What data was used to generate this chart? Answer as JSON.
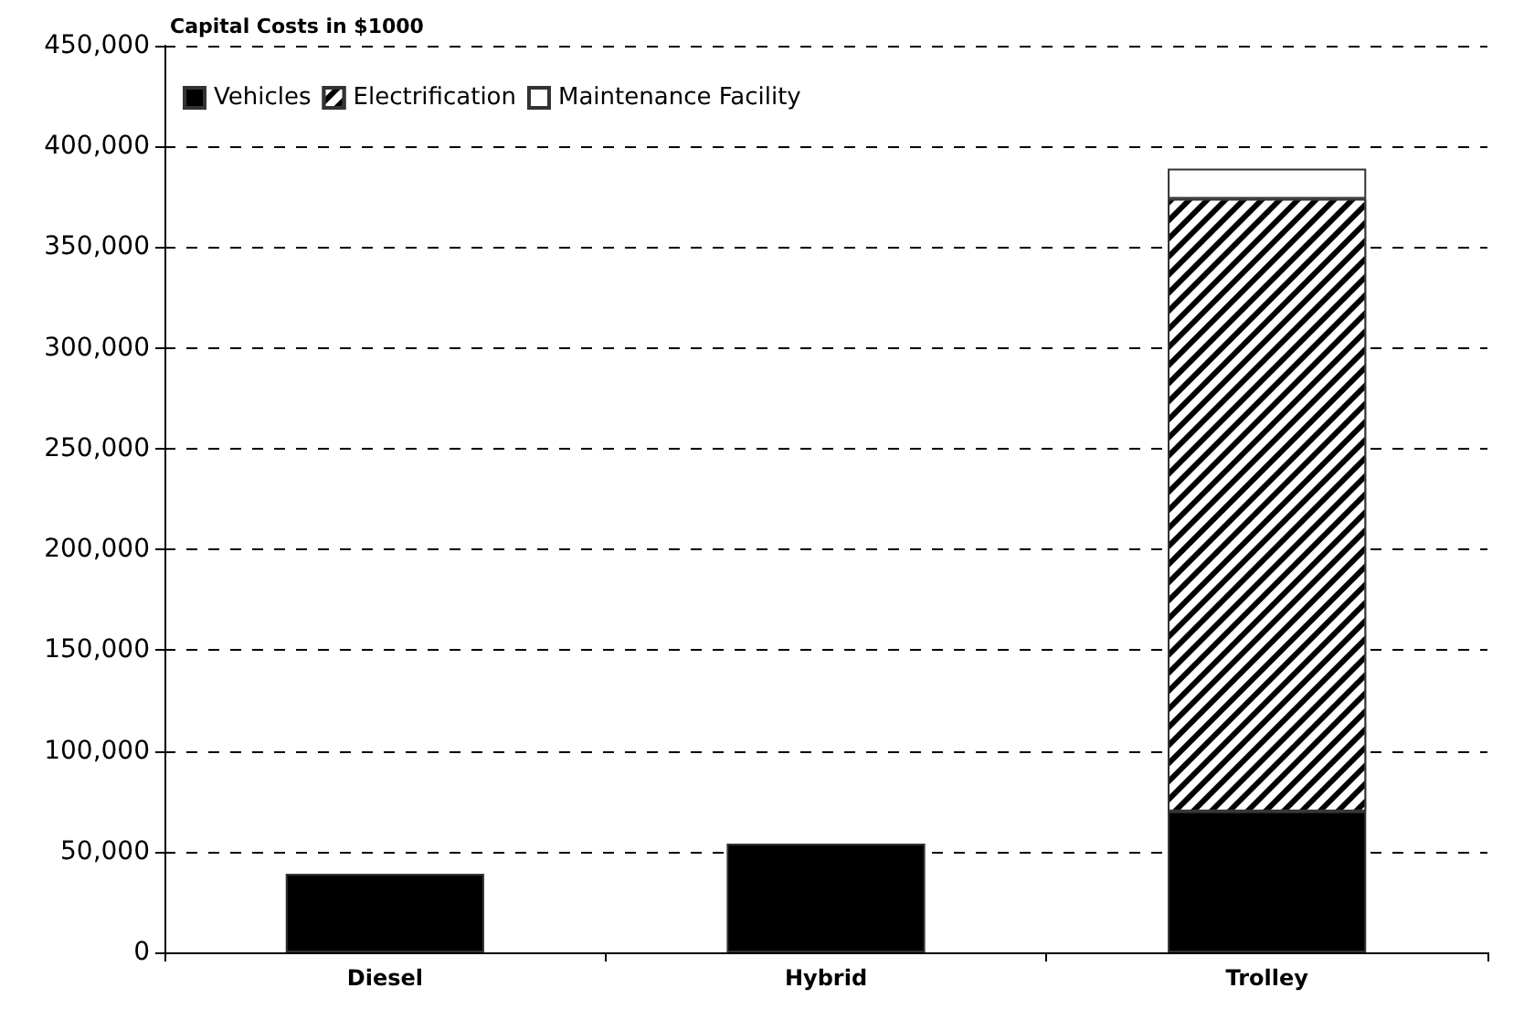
{
  "chart_data": {
    "type": "bar",
    "title": "Capital Costs in $1000",
    "categories": [
      "Diesel",
      "Hybrid",
      "Trolley"
    ],
    "stacked": true,
    "series": [
      {
        "name": "Vehicles",
        "color": "#000000",
        "values": [
          39000,
          54000,
          70000
        ]
      },
      {
        "name": "Electrification",
        "color": "#000000",
        "values": [
          null,
          null,
          304000
        ]
      },
      {
        "name": "Maintenance Facility",
        "color": "#ffffff",
        "values": [
          null,
          null,
          15000
        ]
      }
    ],
    "ylim": [
      0,
      450000
    ],
    "yticks": [
      0,
      {
        "value": 50000,
        "label": "50,000"
      },
      {
        "value": 100000,
        "label": "100,000"
      },
      {
        "value": 150000,
        "label": "150,000"
      },
      {
        "value": 200000,
        "label": "200,000"
      },
      {
        "value": 250000,
        "label": "250,000"
      },
      {
        "value": 300000,
        "label": "300,000"
      },
      {
        "value": 350000,
        "label": "350,000"
      },
      {
        "value": 400000,
        "label": "400,000"
      },
      {
        "value": 450000,
        "label": "450,000"
      }
    ],
    "grid": "y",
    "legend": "top left"
  }
}
